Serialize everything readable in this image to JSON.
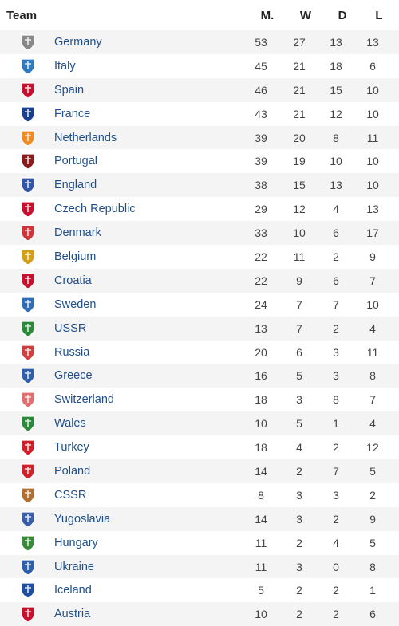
{
  "header": {
    "team": "Team",
    "m": "M.",
    "w": "W",
    "d": "D",
    "l": "L"
  },
  "rows": [
    {
      "team": "Germany",
      "m": "53",
      "w": "27",
      "d": "13",
      "l": "13",
      "color": "#888888",
      "icon": "eagle-crest-icon"
    },
    {
      "team": "Italy",
      "m": "45",
      "w": "21",
      "d": "18",
      "l": "6",
      "color": "#2e7bc0",
      "icon": "italy-crest-icon"
    },
    {
      "team": "Spain",
      "m": "46",
      "w": "21",
      "d": "15",
      "l": "10",
      "color": "#c8102e",
      "icon": "spain-crest-icon"
    },
    {
      "team": "France",
      "m": "43",
      "w": "21",
      "d": "12",
      "l": "10",
      "color": "#1b3e8f",
      "icon": "rooster-crest-icon"
    },
    {
      "team": "Netherlands",
      "m": "39",
      "w": "20",
      "d": "8",
      "l": "11",
      "color": "#f08a24",
      "icon": "lion-crest-icon"
    },
    {
      "team": "Portugal",
      "m": "39",
      "w": "19",
      "d": "10",
      "l": "10",
      "color": "#8b1a1a",
      "icon": "portugal-crest-icon"
    },
    {
      "team": "England",
      "m": "38",
      "w": "15",
      "d": "13",
      "l": "10",
      "color": "#3355aa",
      "icon": "three-lions-crest-icon"
    },
    {
      "team": "Czech Republic",
      "m": "29",
      "w": "12",
      "d": "4",
      "l": "13",
      "color": "#c8102e",
      "icon": "czech-crest-icon"
    },
    {
      "team": "Denmark",
      "m": "33",
      "w": "10",
      "d": "6",
      "l": "17",
      "color": "#d0353a",
      "icon": "denmark-crest-icon"
    },
    {
      "team": "Belgium",
      "m": "22",
      "w": "11",
      "d": "2",
      "l": "9",
      "color": "#d4a017",
      "icon": "belgium-crest-icon"
    },
    {
      "team": "Croatia",
      "m": "22",
      "w": "9",
      "d": "6",
      "l": "7",
      "color": "#c8102e",
      "icon": "checkered-crest-icon"
    },
    {
      "team": "Sweden",
      "m": "24",
      "w": "7",
      "d": "7",
      "l": "10",
      "color": "#2f6db5",
      "icon": "sweden-crest-icon"
    },
    {
      "team": "USSR",
      "m": "13",
      "w": "7",
      "d": "2",
      "l": "4",
      "color": "#2a8a3a",
      "icon": "ussr-crest-icon"
    },
    {
      "team": "Russia",
      "m": "20",
      "w": "6",
      "d": "3",
      "l": "11",
      "color": "#d04040",
      "icon": "double-eagle-crest-icon"
    },
    {
      "team": "Greece",
      "m": "16",
      "w": "5",
      "d": "3",
      "l": "8",
      "color": "#2f5fa8",
      "icon": "greece-crest-icon"
    },
    {
      "team": "Switzerland",
      "m": "18",
      "w": "3",
      "d": "8",
      "l": "7",
      "color": "#e07070",
      "icon": "swiss-crest-icon"
    },
    {
      "team": "Wales",
      "m": "10",
      "w": "5",
      "d": "1",
      "l": "4",
      "color": "#2a8a3a",
      "icon": "dragon-crest-icon"
    },
    {
      "team": "Turkey",
      "m": "18",
      "w": "4",
      "d": "2",
      "l": "12",
      "color": "#d0202a",
      "icon": "turkey-crest-icon"
    },
    {
      "team": "Poland",
      "m": "14",
      "w": "2",
      "d": "7",
      "l": "5",
      "color": "#d0202a",
      "icon": "poland-crest-icon"
    },
    {
      "team": "CSSR",
      "m": "8",
      "w": "3",
      "d": "3",
      "l": "2",
      "color": "#b07030",
      "icon": "cssr-crest-icon"
    },
    {
      "team": "Yugoslavia",
      "m": "14",
      "w": "3",
      "d": "2",
      "l": "9",
      "color": "#3a5ea8",
      "icon": "yugoslavia-crest-icon"
    },
    {
      "team": "Hungary",
      "m": "11",
      "w": "2",
      "d": "4",
      "l": "5",
      "color": "#3a8a3a",
      "icon": "hungary-crest-icon"
    },
    {
      "team": "Ukraine",
      "m": "11",
      "w": "3",
      "d": "0",
      "l": "8",
      "color": "#2f5fa8",
      "icon": "ukraine-crest-icon"
    },
    {
      "team": "Iceland",
      "m": "5",
      "w": "2",
      "d": "2",
      "l": "1",
      "color": "#1d4ea0",
      "icon": "ksi-crest-icon"
    },
    {
      "team": "Austria",
      "m": "10",
      "w": "2",
      "d": "2",
      "l": "6",
      "color": "#c8102e",
      "icon": "austria-crest-icon"
    }
  ]
}
